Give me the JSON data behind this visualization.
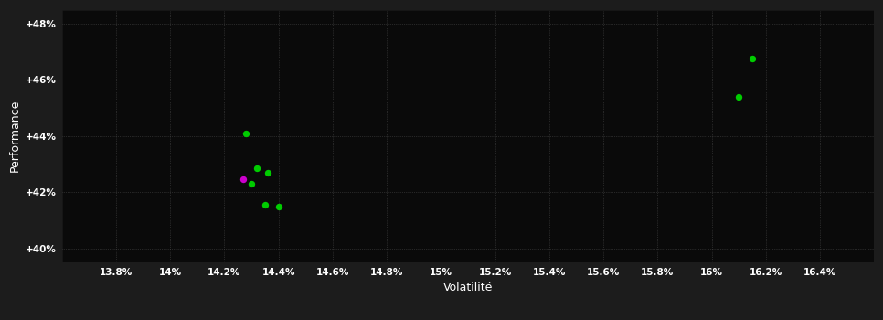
{
  "background_color": "#1c1c1c",
  "plot_bg_color": "#0a0a0a",
  "text_color": "#ffffff",
  "xlabel": "Volatilité",
  "ylabel": "Performance",
  "xlim": [
    13.6,
    16.6
  ],
  "ylim": [
    39.5,
    48.5
  ],
  "xticks": [
    13.8,
    14.0,
    14.2,
    14.4,
    14.6,
    14.8,
    15.0,
    15.2,
    15.4,
    15.6,
    15.8,
    16.0,
    16.2,
    16.4
  ],
  "xtick_labels": [
    "13.8%",
    "14%",
    "14.2%",
    "14.4%",
    "14.6%",
    "14.8%",
    "15%",
    "15.2%",
    "15.4%",
    "15.6%",
    "15.8%",
    "16%",
    "16.2%",
    "16.4%"
  ],
  "yticks": [
    40,
    42,
    44,
    46,
    48
  ],
  "ytick_labels": [
    "+40%",
    "+42%",
    "+44%",
    "+46%",
    "+48%"
  ],
  "points_green": [
    [
      14.28,
      44.1
    ],
    [
      14.32,
      42.85
    ],
    [
      14.36,
      42.7
    ],
    [
      14.3,
      42.3
    ],
    [
      14.35,
      41.55
    ],
    [
      14.4,
      41.5
    ],
    [
      16.1,
      45.4
    ],
    [
      16.15,
      46.75
    ]
  ],
  "points_magenta": [
    [
      14.27,
      42.45
    ]
  ],
  "point_size": 28,
  "dot_color_green": "#00cc00",
  "dot_color_magenta": "#cc00cc"
}
